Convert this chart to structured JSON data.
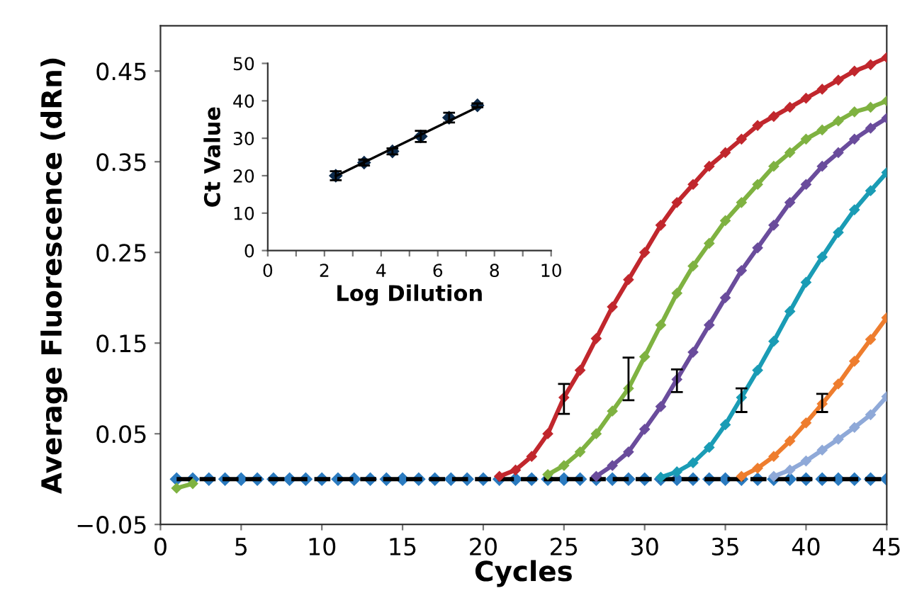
{
  "chart_data": [
    {
      "type": "line",
      "xlabel": "Cycles",
      "ylabel": "Average Fluorescence (dRn)",
      "x": [
        1,
        2,
        3,
        4,
        5,
        6,
        7,
        8,
        9,
        10,
        11,
        12,
        13,
        14,
        15,
        16,
        17,
        18,
        19,
        20,
        21,
        22,
        23,
        24,
        25,
        26,
        27,
        28,
        29,
        30,
        31,
        32,
        33,
        34,
        35,
        36,
        37,
        38,
        39,
        40,
        41,
        42,
        43,
        44,
        45
      ],
      "xlim": [
        0,
        45
      ],
      "xticks": [
        0,
        5,
        10,
        15,
        20,
        25,
        30,
        35,
        40,
        45
      ],
      "ylim": [
        -0.05,
        0.5
      ],
      "yticks": [
        {
          "value": -0.05,
          "label": "−0.05"
        },
        0.05,
        0.15,
        0.25,
        0.35,
        0.45
      ],
      "grid": false,
      "marker": "diamond",
      "series": [
        {
          "type": "scatter",
          "color": "#2b7bc0",
          "values": [
            0,
            0,
            0,
            0,
            0,
            0,
            0,
            0,
            0,
            0,
            0,
            0,
            0,
            0,
            0,
            0,
            0,
            0,
            0,
            0,
            0,
            0,
            0,
            0,
            0,
            0,
            0,
            0,
            0,
            0,
            0,
            0,
            0,
            0,
            0,
            0,
            0,
            0,
            0,
            0,
            0,
            0,
            0,
            0,
            0
          ]
        },
        {
          "color": "#000000",
          "line_style": "dashed",
          "marker": "none",
          "values": [
            0,
            0,
            0,
            0,
            0,
            0,
            0,
            0,
            0,
            0,
            0,
            0,
            0,
            0,
            0,
            0,
            0,
            0,
            0,
            0,
            0,
            0,
            0,
            0,
            0,
            0,
            0,
            0,
            0,
            0,
            0,
            0,
            0,
            0,
            0,
            0,
            0,
            0,
            0,
            0,
            0,
            0,
            0,
            0,
            0
          ]
        },
        {
          "color": "#8fa9d8",
          "values": [
            null,
            null,
            null,
            null,
            null,
            null,
            null,
            null,
            null,
            null,
            null,
            null,
            null,
            null,
            null,
            null,
            null,
            null,
            null,
            null,
            null,
            null,
            null,
            null,
            null,
            null,
            null,
            null,
            null,
            null,
            null,
            null,
            null,
            null,
            null,
            null,
            null,
            0.003,
            0.01,
            0.02,
            0.032,
            0.044,
            0.057,
            0.071,
            0.091
          ]
        },
        {
          "color": "#ee7d2e",
          "values": [
            null,
            null,
            null,
            null,
            null,
            null,
            null,
            null,
            null,
            null,
            null,
            null,
            null,
            null,
            null,
            null,
            null,
            null,
            null,
            null,
            null,
            null,
            null,
            null,
            null,
            null,
            null,
            null,
            null,
            null,
            null,
            null,
            null,
            null,
            null,
            0.003,
            0.012,
            0.025,
            0.042,
            0.062,
            0.083,
            0.105,
            0.13,
            0.154,
            0.178
          ],
          "errors": [
            null,
            null,
            null,
            null,
            null,
            null,
            null,
            null,
            null,
            null,
            null,
            null,
            null,
            null,
            null,
            null,
            null,
            null,
            null,
            null,
            null,
            null,
            null,
            null,
            null,
            null,
            null,
            null,
            null,
            null,
            null,
            null,
            null,
            null,
            null,
            null,
            null,
            null,
            null,
            null,
            [
              0.074,
              0.094
            ],
            null,
            null,
            null,
            null
          ]
        },
        {
          "color": "#1a9cb5",
          "values": [
            null,
            null,
            null,
            null,
            null,
            null,
            null,
            null,
            null,
            null,
            null,
            null,
            null,
            null,
            null,
            null,
            null,
            null,
            null,
            null,
            null,
            null,
            null,
            null,
            null,
            null,
            null,
            null,
            null,
            null,
            0.002,
            0.008,
            0.018,
            0.035,
            0.06,
            0.09,
            0.12,
            0.152,
            0.185,
            0.217,
            0.245,
            0.272,
            0.297,
            0.318,
            0.338
          ],
          "errors": [
            null,
            null,
            null,
            null,
            null,
            null,
            null,
            null,
            null,
            null,
            null,
            null,
            null,
            null,
            null,
            null,
            null,
            null,
            null,
            null,
            null,
            null,
            null,
            null,
            null,
            null,
            null,
            null,
            null,
            null,
            null,
            null,
            null,
            null,
            null,
            [
              0.074,
              0.1
            ],
            null,
            null,
            null,
            null,
            null,
            null,
            null,
            null,
            null
          ]
        },
        {
          "color": "#6a4c9c",
          "values": [
            null,
            null,
            null,
            null,
            null,
            null,
            null,
            null,
            null,
            null,
            null,
            null,
            null,
            null,
            null,
            null,
            null,
            null,
            null,
            null,
            null,
            null,
            null,
            null,
            null,
            null,
            0.003,
            0.015,
            0.03,
            0.055,
            0.08,
            0.11,
            0.14,
            0.17,
            0.2,
            0.23,
            0.255,
            0.28,
            0.305,
            0.325,
            0.345,
            0.36,
            0.375,
            0.387,
            0.398
          ],
          "errors": [
            null,
            null,
            null,
            null,
            null,
            null,
            null,
            null,
            null,
            null,
            null,
            null,
            null,
            null,
            null,
            null,
            null,
            null,
            null,
            null,
            null,
            null,
            null,
            null,
            null,
            null,
            null,
            null,
            null,
            null,
            null,
            [
              0.096,
              0.121
            ],
            null,
            null,
            null,
            null,
            null,
            null,
            null,
            null,
            null,
            null,
            null,
            null,
            null
          ]
        },
        {
          "color": "#7fb241",
          "values": [
            -0.01,
            -0.005,
            null,
            null,
            null,
            null,
            null,
            null,
            null,
            null,
            null,
            null,
            null,
            null,
            null,
            null,
            null,
            null,
            null,
            null,
            null,
            null,
            null,
            0.005,
            0.015,
            0.03,
            0.05,
            0.075,
            0.1,
            0.135,
            0.17,
            0.205,
            0.235,
            0.26,
            0.285,
            0.305,
            0.325,
            0.345,
            0.36,
            0.375,
            0.385,
            0.395,
            0.405,
            0.41,
            0.417
          ],
          "errors": [
            null,
            null,
            null,
            null,
            null,
            null,
            null,
            null,
            null,
            null,
            null,
            null,
            null,
            null,
            null,
            null,
            null,
            null,
            null,
            null,
            null,
            null,
            null,
            null,
            null,
            null,
            null,
            null,
            [
              0.087,
              0.134
            ],
            null,
            null,
            null,
            null,
            null,
            null,
            null,
            null,
            null,
            null,
            null,
            null,
            null,
            null,
            null,
            null
          ]
        },
        {
          "color": "#c1272d",
          "values": [
            null,
            null,
            null,
            null,
            null,
            null,
            null,
            null,
            null,
            null,
            null,
            null,
            null,
            null,
            null,
            null,
            null,
            null,
            null,
            null,
            0.003,
            0.01,
            0.025,
            0.05,
            0.09,
            0.12,
            0.155,
            0.19,
            0.22,
            0.25,
            0.28,
            0.305,
            0.325,
            0.345,
            0.36,
            0.375,
            0.39,
            0.4,
            0.41,
            0.42,
            0.43,
            0.44,
            0.45,
            0.457,
            0.465
          ],
          "errors": [
            null,
            null,
            null,
            null,
            null,
            null,
            null,
            null,
            null,
            null,
            null,
            null,
            null,
            null,
            null,
            null,
            null,
            null,
            null,
            null,
            null,
            null,
            null,
            null,
            [
              0.072,
              0.105
            ],
            null,
            null,
            null,
            null,
            null,
            null,
            null,
            null,
            null,
            null,
            null,
            null,
            null,
            null,
            null,
            null,
            null,
            null,
            null,
            null
          ]
        }
      ]
    },
    {
      "type": "scatter",
      "xlabel": "Log Dilution",
      "ylabel": "Ct Value",
      "xlim": [
        0,
        10
      ],
      "xticks": [
        0,
        {
          "value": 1,
          "label": null
        },
        2,
        {
          "value": 3,
          "label": null
        },
        4,
        {
          "value": 5,
          "label": null
        },
        6,
        {
          "value": 7,
          "label": null
        },
        8,
        {
          "value": 9,
          "label": null
        },
        10
      ],
      "ylim": [
        0,
        50
      ],
      "yticks": [
        0,
        10,
        20,
        30,
        40,
        50
      ],
      "grid": false,
      "marker": "diamond",
      "series": [
        {
          "color": "#0d2a4a",
          "x": [
            2.4,
            3.4,
            4.4,
            5.4,
            6.4,
            7.4
          ],
          "values": [
            20,
            23.5,
            26.5,
            30.5,
            35.5,
            38.8
          ],
          "errors": [
            1.2,
            0.8,
            0.8,
            1.5,
            1.3,
            0.5
          ]
        },
        {
          "type": "line",
          "color": "#000000",
          "marker": "none",
          "x": [
            2.4,
            7.4
          ],
          "values": [
            19.9,
            38.3
          ]
        }
      ]
    }
  ]
}
